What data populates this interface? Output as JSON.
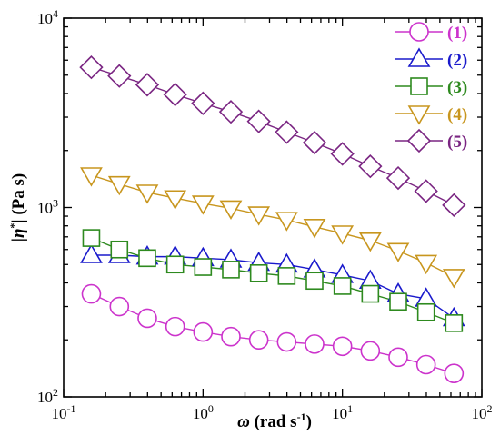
{
  "chart_data": {
    "type": "scatter",
    "x_scale": "log",
    "y_scale": "log",
    "xlim": [
      0.1,
      100
    ],
    "ylim": [
      100,
      10000
    ],
    "x_ticks": [
      {
        "value": 0.1,
        "base": "10",
        "exp": "-1"
      },
      {
        "value": 1,
        "base": "10",
        "exp": "0"
      },
      {
        "value": 10,
        "base": "10",
        "exp": "1"
      },
      {
        "value": 100,
        "base": "10",
        "exp": "2"
      }
    ],
    "y_ticks": [
      {
        "value": 100,
        "base": "10",
        "exp": "2"
      },
      {
        "value": 1000,
        "base": "10",
        "exp": "3"
      },
      {
        "value": 10000,
        "base": "10",
        "exp": "4"
      }
    ],
    "xlabel": {
      "symbol": "ω",
      "text": " (rad s",
      "sup": "-1",
      "close": ")"
    },
    "ylabel": {
      "open": "|",
      "symbol": "η",
      "sup": "*",
      "text": "| (Pa s)"
    },
    "legend_position": "top-right",
    "x": [
      0.158,
      0.251,
      0.398,
      0.631,
      1.0,
      1.585,
      2.512,
      3.981,
      6.31,
      10.0,
      15.85,
      25.12,
      39.81,
      63.1
    ],
    "series": [
      {
        "name": "(1)",
        "marker": "circle",
        "color": "#cc33cc",
        "values": [
          350,
          300,
          260,
          235,
          220,
          208,
          200,
          195,
          190,
          185,
          175,
          162,
          148,
          133
        ]
      },
      {
        "name": "(2)",
        "marker": "triangle-up",
        "color": "#1a1acc",
        "values": [
          560,
          560,
          550,
          550,
          540,
          530,
          510,
          500,
          470,
          440,
          410,
          350,
          330,
          260
        ]
      },
      {
        "name": "(3)",
        "marker": "square",
        "color": "#2e8a1f",
        "values": [
          690,
          600,
          540,
          500,
          485,
          470,
          450,
          435,
          410,
          385,
          350,
          318,
          280,
          245
        ]
      },
      {
        "name": "(4)",
        "marker": "triangle-down",
        "color": "#c8961e",
        "values": [
          1480,
          1330,
          1200,
          1120,
          1050,
          990,
          920,
          860,
          790,
          730,
          670,
          590,
          510,
          430
        ]
      },
      {
        "name": "(5)",
        "marker": "diamond",
        "color": "#7a2582",
        "values": [
          5500,
          4950,
          4450,
          3950,
          3550,
          3200,
          2850,
          2500,
          2200,
          1920,
          1650,
          1430,
          1220,
          1030
        ]
      }
    ]
  }
}
